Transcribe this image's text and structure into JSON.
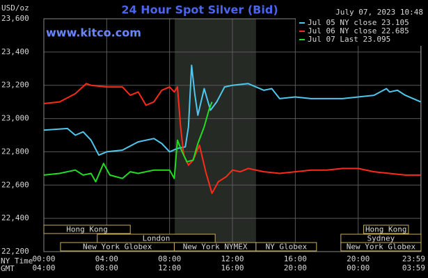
{
  "chart_data": {
    "type": "line",
    "title": "24 Hour Spot Silver (Bid)",
    "y_label": "USD/oz",
    "date": "July 07, 2023 10:48",
    "watermark": "www.kitco.com",
    "ylim": [
      22.2,
      23.6
    ],
    "yticks": [
      {
        "value": 22.2,
        "label": "22,200"
      },
      {
        "value": 22.4,
        "label": "22,400"
      },
      {
        "value": 22.6,
        "label": "22,600"
      },
      {
        "value": 22.8,
        "label": "22,800"
      },
      {
        "value": 23.0,
        "label": "23,000"
      },
      {
        "value": 23.2,
        "label": "23,200"
      },
      {
        "value": 23.4,
        "label": "23,400"
      },
      {
        "value": 23.6,
        "label": "23,600"
      }
    ],
    "xlim": [
      0,
      24
    ],
    "x_row_label": "NY Time",
    "xticks": [
      {
        "value": 0,
        "label": "00:00"
      },
      {
        "value": 4,
        "label": "04:00"
      },
      {
        "value": 8,
        "label": "08:00"
      },
      {
        "value": 12,
        "label": "12:00"
      },
      {
        "value": 16,
        "label": "16:00"
      },
      {
        "value": 20,
        "label": "20:00"
      },
      {
        "value": 23.98,
        "label": "23:59"
      }
    ],
    "x2_row_label": "GMT",
    "x2ticks": [
      {
        "value": 0,
        "label": "04:00"
      },
      {
        "value": 4,
        "label": "08:00"
      },
      {
        "value": 8,
        "label": "12:00"
      },
      {
        "value": 12,
        "label": "16:00"
      },
      {
        "value": 16,
        "label": "20:00"
      },
      {
        "value": 20,
        "label": "00:00"
      },
      {
        "value": 23.98,
        "label": "03:59"
      }
    ],
    "grid": true,
    "highlight": [
      8.33,
      13.5
    ],
    "sessions": [
      [
        {
          "label": "Hong Kong",
          "start": 0,
          "end": 5.5
        },
        {
          "label": "Hong Kong",
          "start": 20.35,
          "end": 23.2
        }
      ],
      [
        {
          "label": "London",
          "start": 3.4,
          "end": 10.9
        },
        {
          "label": "Sydney",
          "start": 18.9,
          "end": 24
        }
      ],
      [
        {
          "label": "New York Globex",
          "start": 1.06,
          "end": 8.3
        },
        {
          "label": "New York NYMEX",
          "start": 8.3,
          "end": 13.5
        },
        {
          "label": "NY Globex",
          "start": 13.5,
          "end": 17.35
        },
        {
          "label": "New York Globex",
          "start": 18.9,
          "end": 24
        }
      ]
    ],
    "series": [
      {
        "name": "Jul 05 NY close 23.105",
        "color": "#4fc8f0",
        "x": [
          0,
          1.5,
          2,
          2.5,
          3,
          3.5,
          4,
          5,
          6,
          7,
          7.5,
          8,
          8.5,
          9,
          9.2,
          9.4,
          9.6,
          9.8,
          10.2,
          10.6,
          11,
          11.5,
          12,
          13,
          14,
          14.5,
          15,
          16,
          17,
          18,
          19,
          20,
          21,
          21.8,
          22,
          22.5,
          23,
          23.98
        ],
        "values": [
          22.93,
          22.94,
          22.9,
          22.92,
          22.87,
          22.78,
          22.8,
          22.81,
          22.86,
          22.88,
          22.85,
          22.8,
          22.82,
          22.83,
          22.95,
          23.32,
          23.15,
          23.02,
          23.18,
          23.05,
          23.1,
          23.19,
          23.2,
          23.21,
          23.17,
          23.18,
          23.12,
          23.13,
          23.12,
          23.12,
          23.12,
          23.13,
          23.14,
          23.18,
          23.16,
          23.17,
          23.14,
          23.1
        ]
      },
      {
        "name": "Jul 06 NY close 22.685",
        "color": "#ff2a1a",
        "x": [
          0,
          1,
          2,
          2.7,
          3,
          4,
          5,
          5.5,
          6,
          6.5,
          7,
          7.5,
          8,
          8.3,
          8.5,
          8.7,
          8.9,
          9.2,
          9.5,
          9.9,
          10.3,
          10.7,
          11.1,
          11.6,
          12,
          12.5,
          13,
          14,
          15,
          16,
          17,
          18,
          19,
          20,
          21,
          22,
          23,
          23.98
        ],
        "values": [
          23.09,
          23.1,
          23.15,
          23.21,
          23.2,
          23.19,
          23.19,
          23.14,
          23.16,
          23.08,
          23.1,
          23.17,
          23.19,
          23.16,
          23.19,
          22.95,
          22.78,
          22.72,
          22.75,
          22.84,
          22.68,
          22.55,
          22.62,
          22.65,
          22.69,
          22.68,
          22.7,
          22.68,
          22.67,
          22.68,
          22.69,
          22.69,
          22.7,
          22.7,
          22.68,
          22.67,
          22.66,
          22.66
        ]
      },
      {
        "name": "Jul 07 Last 23.095",
        "color": "#22dd22",
        "x": [
          0,
          1,
          2,
          2.5,
          3,
          3.3,
          3.8,
          4.2,
          5,
          5.5,
          6,
          7,
          8,
          8.3,
          8.5,
          8.8,
          9.1,
          9.5,
          9.8,
          10.2,
          10.5,
          10.7
        ],
        "values": [
          22.66,
          22.67,
          22.69,
          22.66,
          22.67,
          22.62,
          22.73,
          22.66,
          22.64,
          22.68,
          22.67,
          22.69,
          22.69,
          22.64,
          22.87,
          22.8,
          22.74,
          22.75,
          22.85,
          22.95,
          23.05,
          23.1
        ]
      }
    ]
  }
}
